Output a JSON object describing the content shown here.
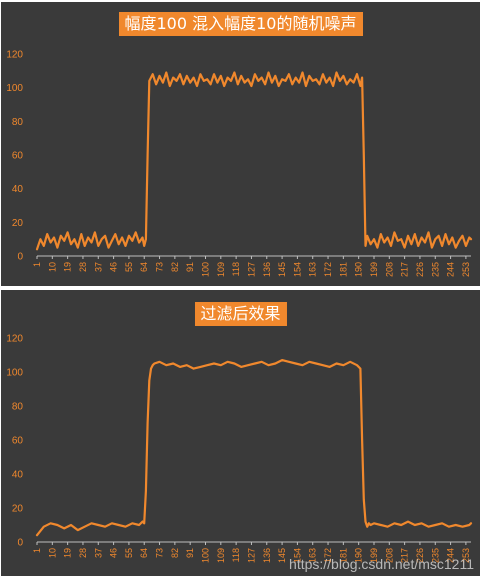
{
  "theme": {
    "background": "#3a3a3a",
    "accent": "#f0882d",
    "axis": "#bfbfbf"
  },
  "chart_data": [
    {
      "type": "line",
      "title": "幅度100 混入幅度10的随机噪声",
      "xlabel": "",
      "ylabel": "",
      "ylim": [
        0,
        120
      ],
      "yticks": [
        "0",
        "20",
        "40",
        "60",
        "80",
        "100",
        "120"
      ],
      "xlim": [
        1,
        256
      ],
      "xticks": [
        "1",
        "10",
        "19",
        "28",
        "37",
        "46",
        "55",
        "64",
        "73",
        "82",
        "91",
        "100",
        "109",
        "118",
        "127",
        "136",
        "145",
        "154",
        "163",
        "172",
        "181",
        "190",
        "199",
        "208",
        "217",
        "226",
        "235",
        "244",
        "253"
      ],
      "grid": false,
      "legend": "none",
      "series": [
        {
          "color": "#f0882d",
          "x": [
            1,
            3,
            5,
            7,
            9,
            11,
            13,
            15,
            17,
            19,
            21,
            23,
            25,
            27,
            29,
            31,
            33,
            35,
            37,
            39,
            41,
            43,
            45,
            47,
            49,
            51,
            53,
            55,
            57,
            59,
            61,
            63,
            64,
            65,
            66,
            67,
            69,
            71,
            73,
            75,
            77,
            79,
            81,
            83,
            85,
            87,
            89,
            91,
            93,
            95,
            97,
            99,
            101,
            103,
            105,
            107,
            109,
            111,
            113,
            115,
            117,
            119,
            121,
            123,
            125,
            127,
            129,
            131,
            133,
            135,
            137,
            139,
            141,
            143,
            145,
            147,
            149,
            151,
            153,
            155,
            157,
            159,
            161,
            163,
            165,
            167,
            169,
            171,
            173,
            175,
            177,
            179,
            181,
            183,
            185,
            187,
            189,
            191,
            192,
            193,
            194,
            195,
            197,
            199,
            201,
            203,
            205,
            207,
            209,
            211,
            213,
            215,
            217,
            219,
            221,
            223,
            225,
            227,
            229,
            231,
            233,
            235,
            237,
            239,
            241,
            243,
            245,
            247,
            249,
            251,
            253,
            255,
            256
          ],
          "y": [
            4,
            10,
            6,
            13,
            8,
            11,
            5,
            12,
            9,
            14,
            7,
            10,
            5,
            13,
            6,
            11,
            8,
            14,
            6,
            10,
            12,
            5,
            9,
            13,
            7,
            11,
            6,
            12,
            9,
            14,
            8,
            11,
            6,
            10,
            60,
            104,
            108,
            102,
            107,
            103,
            109,
            101,
            106,
            104,
            108,
            102,
            107,
            103,
            106,
            101,
            108,
            104,
            105,
            102,
            108,
            103,
            107,
            101,
            106,
            104,
            109,
            102,
            107,
            103,
            105,
            101,
            108,
            104,
            106,
            102,
            109,
            103,
            107,
            101,
            105,
            104,
            108,
            102,
            106,
            103,
            109,
            101,
            107,
            104,
            105,
            102,
            108,
            103,
            106,
            101,
            109,
            104,
            107,
            102,
            105,
            103,
            108,
            101,
            106,
            60,
            6,
            12,
            7,
            10,
            5,
            13,
            8,
            11,
            6,
            14,
            9,
            10,
            5,
            12,
            7,
            13,
            6,
            11,
            8,
            14,
            5,
            10,
            12,
            6,
            13,
            7,
            11,
            5,
            9,
            12,
            6,
            11,
            10
          ]
        }
      ]
    },
    {
      "type": "line",
      "title": "过滤后效果",
      "xlabel": "",
      "ylabel": "",
      "ylim": [
        0,
        120
      ],
      "yticks": [
        "0",
        "20",
        "40",
        "60",
        "80",
        "100",
        "120"
      ],
      "xlim": [
        1,
        256
      ],
      "xticks": [
        "1",
        "10",
        "19",
        "28",
        "37",
        "46",
        "55",
        "64",
        "73",
        "82",
        "91",
        "100",
        "109",
        "118",
        "127",
        "136",
        "145",
        "154",
        "163",
        "172",
        "181",
        "190",
        "199",
        "208",
        "217",
        "226",
        "235",
        "244",
        "253"
      ],
      "grid": false,
      "legend": "none",
      "series": [
        {
          "color": "#f0882d",
          "x": [
            1,
            5,
            9,
            13,
            17,
            21,
            25,
            29,
            33,
            37,
            41,
            45,
            49,
            53,
            57,
            61,
            63,
            64,
            65,
            66,
            67,
            68,
            69,
            70,
            73,
            77,
            81,
            85,
            89,
            93,
            97,
            101,
            105,
            109,
            113,
            117,
            121,
            125,
            129,
            133,
            137,
            141,
            145,
            149,
            153,
            157,
            161,
            165,
            169,
            173,
            177,
            181,
            185,
            189,
            191,
            192,
            193,
            194,
            195,
            196,
            197,
            199,
            203,
            207,
            211,
            215,
            219,
            223,
            227,
            231,
            235,
            239,
            243,
            247,
            251,
            255,
            256
          ],
          "y": [
            4,
            9,
            11,
            10,
            8,
            10,
            7,
            9,
            11,
            10,
            9,
            11,
            10,
            9,
            11,
            10,
            12,
            11,
            30,
            70,
            95,
            102,
            104,
            105,
            106,
            104,
            105,
            103,
            104,
            102,
            103,
            104,
            105,
            104,
            106,
            105,
            103,
            104,
            105,
            106,
            104,
            105,
            107,
            106,
            105,
            104,
            106,
            105,
            104,
            103,
            105,
            104,
            106,
            104,
            102,
            60,
            25,
            12,
            9,
            11,
            10,
            11,
            10,
            9,
            11,
            10,
            12,
            10,
            11,
            9,
            10,
            11,
            9,
            10,
            9,
            10,
            11
          ]
        }
      ]
    }
  ],
  "watermark": "https://blog.csdn.net/msc1211"
}
